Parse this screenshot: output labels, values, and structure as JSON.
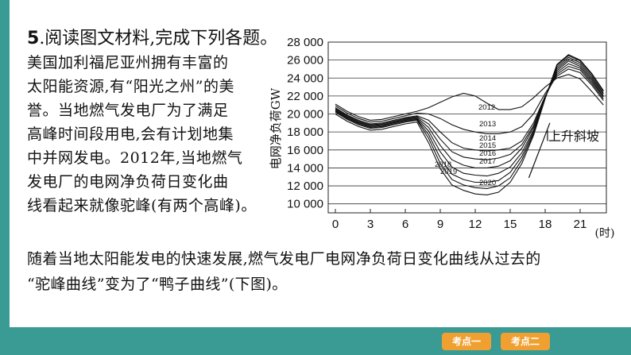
{
  "question": {
    "number": "5",
    "intro": ".阅读图文材料,完成下列各题。"
  },
  "paragraph_lines": [
    "美国加利福尼亚州拥有丰富的",
    "太阳能资源,有“阳光之州”的美",
    "誉。当地燃气发电厂为了满足",
    "高峰时间段用电,会有计划地集",
    "中并网发电。2012年,当地燃气",
    "发电厂的电网净负荷日变化曲",
    "线看起来就像驼峰(有两个高峰)。"
  ],
  "bottom_lines": [
    "随着当地太阳能发电的快速发展,燃气发电厂电网净负荷日变化曲线从过去的",
    "“驼峰曲线”变为了“鸭子曲线”(下图)。"
  ],
  "nav": {
    "btn1": "考点一",
    "btn2": "考点二"
  },
  "colors": {
    "accent": "#3a9a94",
    "button": "#f0a030"
  },
  "chart_data": {
    "type": "line",
    "ylabel": "电网净负荷GW",
    "xlabel": "(时)",
    "ylim": [
      10000,
      28000
    ],
    "xlim": [
      0,
      24
    ],
    "yticks": [
      10000,
      12000,
      14000,
      16000,
      18000,
      20000,
      22000,
      24000,
      26000,
      28000
    ],
    "ytick_labels": [
      "10 000",
      "12 000",
      "14 000",
      "16 000",
      "18 000",
      "20 000",
      "22 000",
      "24 000",
      "26 000",
      "28 000"
    ],
    "xticks": [
      0,
      3,
      6,
      9,
      12,
      15,
      18,
      21
    ],
    "grid": "horizontal",
    "annotation": "上升斜坡",
    "x": [
      0,
      1,
      2,
      3,
      4,
      5,
      6,
      7,
      8,
      9,
      10,
      11,
      12,
      13,
      14,
      15,
      16,
      17,
      18,
      19,
      20,
      21,
      22,
      23
    ],
    "series": [
      {
        "name": "2012",
        "values": [
          21100,
          20300,
          19700,
          19300,
          19400,
          19700,
          20000,
          20300,
          20700,
          21300,
          21900,
          22300,
          22000,
          21200,
          20500,
          20500,
          20800,
          21800,
          23000,
          24000,
          24400,
          23900,
          22500,
          21000
        ]
      },
      {
        "name": "2013",
        "values": [
          20900,
          20100,
          19500,
          19100,
          19200,
          19500,
          19800,
          20100,
          20000,
          19500,
          18800,
          18300,
          18000,
          17800,
          17800,
          18000,
          18600,
          20000,
          22300,
          24200,
          25000,
          24600,
          23200,
          21500
        ]
      },
      {
        "name": "2014",
        "values": [
          20700,
          19900,
          19300,
          18900,
          19000,
          19300,
          19600,
          19800,
          19300,
          18000,
          16800,
          16200,
          16000,
          15900,
          16000,
          16200,
          17000,
          19000,
          22000,
          24400,
          25300,
          24900,
          23400,
          21700
        ]
      },
      {
        "name": "2015",
        "values": [
          20600,
          19800,
          19200,
          18800,
          18900,
          19200,
          19500,
          19700,
          18900,
          17200,
          15800,
          15200,
          15000,
          14900,
          15100,
          15500,
          16600,
          18700,
          21900,
          24600,
          25600,
          25100,
          23600,
          21900
        ]
      },
      {
        "name": "2016",
        "values": [
          20500,
          19700,
          19100,
          18700,
          18800,
          19100,
          19400,
          19600,
          18500,
          16500,
          14900,
          14300,
          14000,
          14000,
          14200,
          14800,
          16200,
          18500,
          21900,
          24800,
          25900,
          25300,
          23800,
          22000
        ]
      },
      {
        "name": "2017",
        "values": [
          20400,
          19600,
          19000,
          18600,
          18700,
          19000,
          19300,
          19500,
          18100,
          15800,
          14100,
          13400,
          13200,
          13100,
          13400,
          14100,
          15700,
          18200,
          21800,
          25000,
          26100,
          25500,
          24000,
          22200
        ]
      },
      {
        "name": "2018",
        "values": [
          20300,
          19500,
          18900,
          18500,
          18600,
          18900,
          19200,
          19400,
          17700,
          15100,
          13300,
          12700,
          12400,
          12400,
          12600,
          13500,
          15300,
          18000,
          21800,
          25200,
          26300,
          25700,
          24200,
          22300
        ]
      },
      {
        "name": "2019",
        "values": [
          20200,
          19400,
          18800,
          18400,
          18500,
          18800,
          19100,
          19300,
          17300,
          14500,
          12700,
          12100,
          11800,
          11700,
          12000,
          12900,
          14900,
          17800,
          21800,
          25400,
          26500,
          25900,
          24400,
          22500
        ]
      },
      {
        "name": "2020",
        "values": [
          20000,
          19200,
          18600,
          18200,
          18300,
          18600,
          18900,
          19100,
          16800,
          13900,
          12100,
          11500,
          11100,
          11000,
          11300,
          12400,
          14500,
          17600,
          21700,
          25500,
          26600,
          26000,
          24500,
          22600
        ]
      }
    ]
  }
}
